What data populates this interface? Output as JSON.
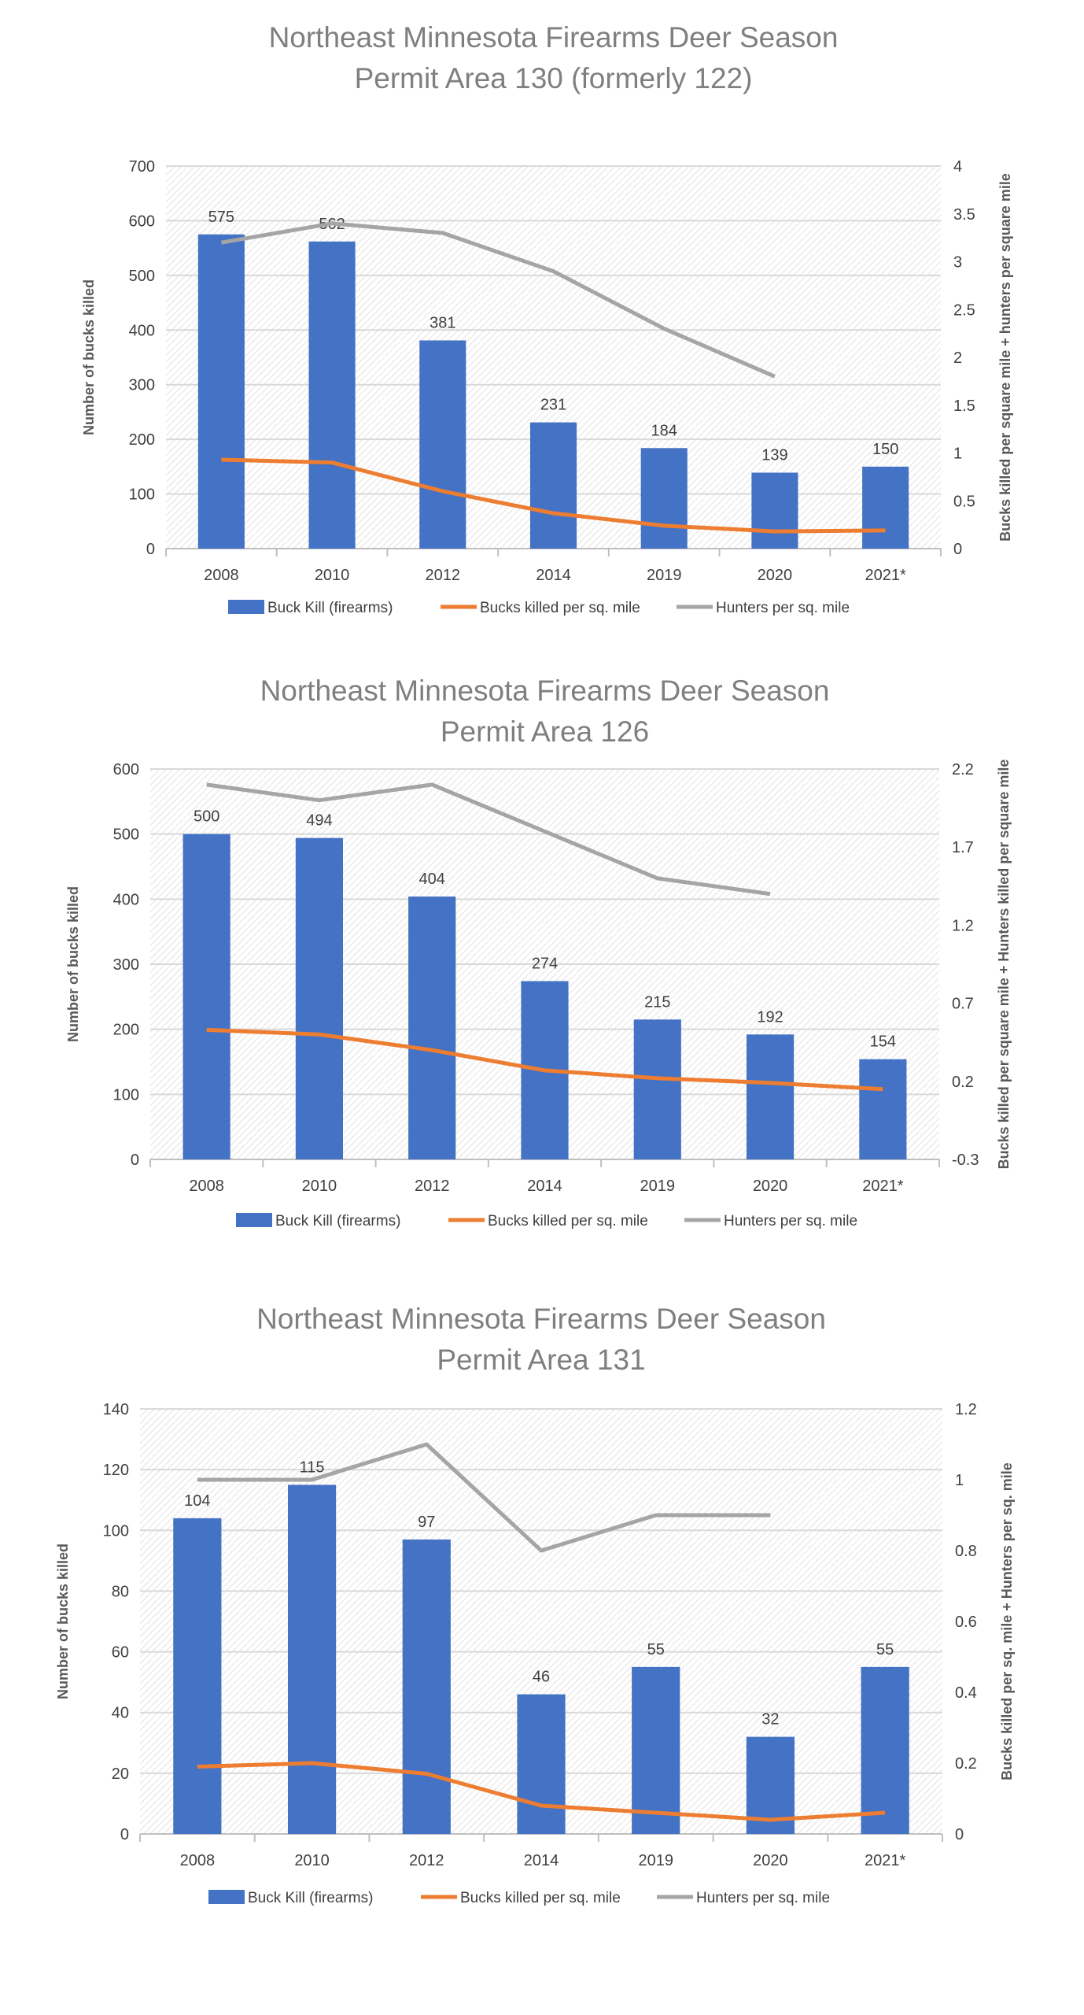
{
  "colors": {
    "bar": "#4472c4",
    "orange": "#ed7d31",
    "gray": "#a5a5a5",
    "grid": "#d9d9d9"
  },
  "chart_data": [
    {
      "type": "bar",
      "title": [
        "Northeast Minnesota Firearms Deer Season",
        "Permit Area 130 (formerly 122)"
      ],
      "categories": [
        "2008",
        "2010",
        "2012",
        "2014",
        "2019",
        "2020",
        "2021*"
      ],
      "ylabel": "Number of bucks killed",
      "y2label": "Bucks killed per square mile + hunters per square mile",
      "ylim": [
        0,
        700
      ],
      "yticks": [
        "0",
        "100",
        "200",
        "300",
        "400",
        "500",
        "600",
        "700"
      ],
      "y2lim": [
        0,
        4
      ],
      "y2ticks": [
        "0",
        "0.5",
        "1",
        "1.5",
        "2",
        "2.5",
        "3",
        "3.5",
        "4"
      ],
      "series": [
        {
          "name": "Buck Kill (firearms)",
          "kind": "bar",
          "axis": "left",
          "values": [
            575,
            562,
            381,
            231,
            184,
            139,
            150
          ],
          "labels": [
            "575",
            "562",
            "381",
            "231",
            "184",
            "139",
            "150"
          ]
        },
        {
          "name": "Bucks killed per sq. mile",
          "kind": "line",
          "axis": "right",
          "values": [
            0.93,
            0.9,
            0.6,
            0.37,
            0.24,
            0.18,
            0.19
          ]
        },
        {
          "name": "Hunters per sq. mile",
          "kind": "line",
          "axis": "right",
          "values": [
            3.2,
            3.4,
            3.3,
            2.9,
            2.3,
            1.8,
            null
          ]
        }
      ],
      "grid": true,
      "legend": "bottom"
    },
    {
      "type": "bar",
      "title": [
        "Northeast Minnesota Firearms Deer Season",
        "Permit Area 126"
      ],
      "categories": [
        "2008",
        "2010",
        "2012",
        "2014",
        "2019",
        "2020",
        "2021*"
      ],
      "ylabel": "Number of bucks killed",
      "y2label": "Bucks killed per square mile + Hunters killed per square mile",
      "ylim": [
        0,
        600
      ],
      "yticks": [
        "0",
        "100",
        "200",
        "300",
        "400",
        "500",
        "600"
      ],
      "y2lim": [
        -0.3,
        2.2
      ],
      "y2ticks": [
        "-0.3",
        "0.2",
        "0.7",
        "1.2",
        "1.7",
        "2.2"
      ],
      "series": [
        {
          "name": "Buck Kill (firearms)",
          "kind": "bar",
          "axis": "left",
          "values": [
            500,
            494,
            404,
            274,
            215,
            192,
            154
          ],
          "labels": [
            "500",
            "494",
            "404",
            "274",
            "215",
            "192",
            "154"
          ]
        },
        {
          "name": "Bucks killed per sq. mile",
          "kind": "line",
          "axis": "right",
          "values": [
            0.53,
            0.5,
            0.4,
            0.27,
            0.22,
            0.19,
            0.15
          ]
        },
        {
          "name": "Hunters per sq. mile",
          "kind": "line",
          "axis": "right",
          "values": [
            2.1,
            2.0,
            2.1,
            1.8,
            1.5,
            1.4,
            null
          ]
        }
      ],
      "grid": true,
      "legend": "bottom"
    },
    {
      "type": "bar",
      "title": [
        "Northeast Minnesota Firearms Deer Season",
        "Permit Area 131"
      ],
      "categories": [
        "2008",
        "2010",
        "2012",
        "2014",
        "2019",
        "2020",
        "2021*"
      ],
      "ylabel": "Number of bucks killed",
      "y2label": "Bucks killed per sq. mile + Hunters per sq. mile",
      "ylim": [
        0,
        140
      ],
      "yticks": [
        "0",
        "20",
        "40",
        "60",
        "80",
        "100",
        "120",
        "140"
      ],
      "y2lim": [
        0,
        1.2
      ],
      "y2ticks": [
        "0",
        "0.2",
        "0.4",
        "0.6",
        "0.8",
        "1",
        "1.2"
      ],
      "series": [
        {
          "name": "Buck Kill (firearms)",
          "kind": "bar",
          "axis": "left",
          "values": [
            104,
            115,
            97,
            46,
            55,
            32,
            55
          ],
          "labels": [
            "104",
            "115",
            "97",
            "46",
            "55",
            "32",
            "55"
          ]
        },
        {
          "name": "Bucks killed per sq. mile",
          "kind": "line",
          "axis": "right",
          "values": [
            0.19,
            0.2,
            0.17,
            0.08,
            0.06,
            0.04,
            0.06
          ]
        },
        {
          "name": "Hunters per sq. mile",
          "kind": "line",
          "axis": "right",
          "values": [
            1.0,
            1.0,
            1.1,
            0.8,
            0.9,
            0.9,
            null
          ]
        }
      ],
      "grid": true,
      "legend": "bottom"
    }
  ]
}
